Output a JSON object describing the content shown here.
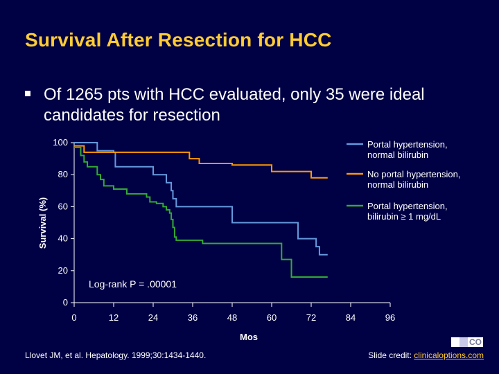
{
  "page": {
    "title": "Survival After Resection for HCC",
    "bullet": "Of 1265 pts with HCC evaluated, only 35 were ideal candidates for resection",
    "citation": "Llovet JM, et al. Hepatology. 1999;30:1434-1440.",
    "credit_prefix": "Slide credit: ",
    "credit_link": "clinicaloptions.com",
    "logo_text": "CO"
  },
  "chart_data": {
    "type": "line",
    "step": true,
    "xlabel": "Mos",
    "ylabel": "Survival (%)",
    "xlim": [
      0,
      96
    ],
    "ylim": [
      0,
      100
    ],
    "xticks": [
      0,
      12,
      24,
      36,
      48,
      60,
      72,
      84,
      96
    ],
    "yticks": [
      0,
      20,
      40,
      60,
      80,
      100
    ],
    "annotation": "Log-rank P = .00001",
    "series": [
      {
        "name": "Portal hypertension, normal bilirubin",
        "color": "#6699dd",
        "points": [
          [
            0,
            100
          ],
          [
            7,
            100
          ],
          [
            7,
            95
          ],
          [
            12,
            95
          ],
          [
            12,
            94
          ],
          [
            12.5,
            94
          ],
          [
            12.5,
            85
          ],
          [
            18,
            85
          ],
          [
            24,
            85
          ],
          [
            24,
            85
          ],
          [
            24,
            80
          ],
          [
            28,
            80
          ],
          [
            28,
            75
          ],
          [
            29.5,
            75
          ],
          [
            29.5,
            70
          ],
          [
            30,
            70
          ],
          [
            30,
            65
          ],
          [
            31,
            65
          ],
          [
            31,
            60
          ],
          [
            38,
            60
          ],
          [
            48,
            60
          ],
          [
            48,
            50
          ],
          [
            60,
            50
          ],
          [
            68,
            50
          ],
          [
            68,
            40
          ],
          [
            73.5,
            40
          ],
          [
            73.5,
            35
          ],
          [
            74.5,
            35
          ],
          [
            74.5,
            30
          ],
          [
            77,
            30
          ]
        ]
      },
      {
        "name": "No portal hypertension, normal bilirubin",
        "color": "#ff9900",
        "points": [
          [
            0,
            98
          ],
          [
            3,
            98
          ],
          [
            3,
            94
          ],
          [
            25,
            94
          ],
          [
            35,
            94
          ],
          [
            35,
            90
          ],
          [
            38,
            90
          ],
          [
            38,
            87
          ],
          [
            48,
            87
          ],
          [
            48,
            87
          ],
          [
            48,
            86
          ],
          [
            60,
            86
          ],
          [
            60,
            82
          ],
          [
            72,
            82
          ],
          [
            72,
            78
          ],
          [
            77,
            78
          ]
        ]
      },
      {
        "name": "Portal hypertension, bilirubin ≥ 1 mg/dL",
        "color": "#33aa33",
        "points": [
          [
            0,
            97
          ],
          [
            2,
            97
          ],
          [
            2,
            92
          ],
          [
            3,
            92
          ],
          [
            3,
            88
          ],
          [
            4,
            88
          ],
          [
            4,
            85
          ],
          [
            7,
            85
          ],
          [
            7,
            80
          ],
          [
            8,
            80
          ],
          [
            8,
            77
          ],
          [
            9,
            77
          ],
          [
            9,
            73
          ],
          [
            12,
            73
          ],
          [
            12,
            71
          ],
          [
            16,
            71
          ],
          [
            16,
            68
          ],
          [
            22,
            68
          ],
          [
            22,
            66
          ],
          [
            23,
            66
          ],
          [
            23,
            63
          ],
          [
            25,
            63
          ],
          [
            25,
            62
          ],
          [
            27,
            62
          ],
          [
            27,
            60
          ],
          [
            28,
            60
          ],
          [
            28,
            58
          ],
          [
            29,
            58
          ],
          [
            29,
            56
          ],
          [
            29.5,
            56
          ],
          [
            29.5,
            52
          ],
          [
            30,
            52
          ],
          [
            30,
            47
          ],
          [
            30.5,
            47
          ],
          [
            30.5,
            41
          ],
          [
            31,
            41
          ],
          [
            31,
            39
          ],
          [
            33,
            39
          ],
          [
            39,
            39
          ],
          [
            39,
            37
          ],
          [
            48,
            37
          ],
          [
            63,
            37
          ],
          [
            63,
            27
          ],
          [
            66,
            27
          ],
          [
            66,
            16
          ],
          [
            77,
            16
          ]
        ]
      }
    ],
    "legend_position": "top-right"
  }
}
